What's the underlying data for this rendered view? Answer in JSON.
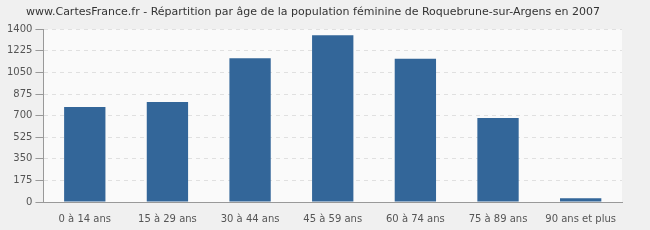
{
  "chart_data": {
    "type": "bar",
    "title": "www.CartesFrance.fr - Répartition par âge de la population féminine de Roquebrune-sur-Argens en 2007",
    "categories": [
      "0 à 14 ans",
      "15 à 29 ans",
      "30 à 44 ans",
      "45 à 59 ans",
      "60 à 74 ans",
      "75 à 89 ans",
      "90 ans et plus"
    ],
    "values": [
      770,
      810,
      1165,
      1350,
      1160,
      680,
      30
    ],
    "color": "#336699",
    "ylim": [
      0,
      1400
    ],
    "yticks": [
      0,
      175,
      350,
      525,
      700,
      875,
      1050,
      1225,
      1400
    ],
    "grid": true
  }
}
